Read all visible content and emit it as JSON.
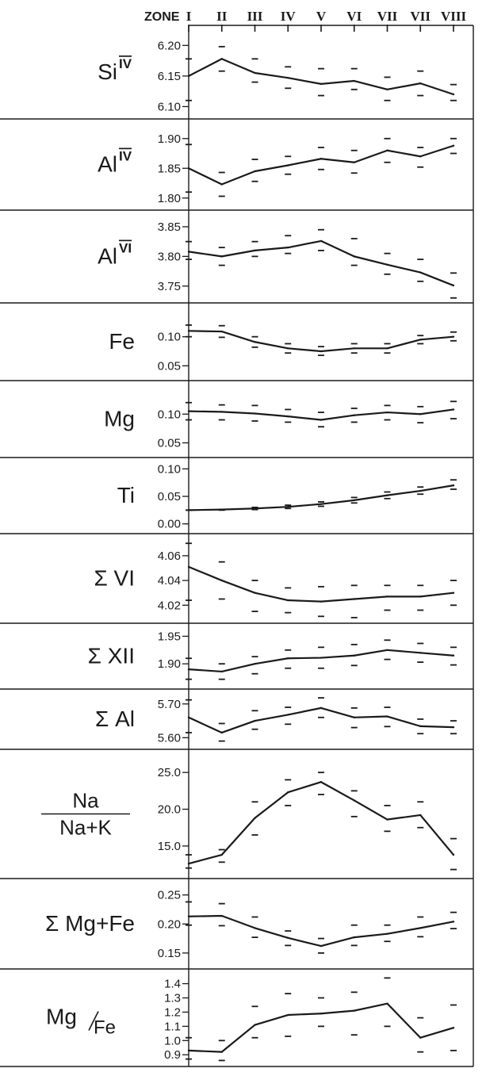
{
  "header": {
    "label": "ZONE"
  },
  "chart_data": {
    "type": "line",
    "categories": [
      "I",
      "II",
      "III",
      "IV",
      "V",
      "VI",
      "VII",
      "VII",
      "VIII"
    ],
    "panels": [
      {
        "id": "si",
        "label_main": "Si",
        "label_sup": "IV",
        "yticks": [
          "6.20",
          "6.15",
          "6.10"
        ],
        "ytick_values": [
          6.2,
          6.15,
          6.1
        ],
        "ylim": [
          6.085,
          6.225
        ],
        "values": [
          6.15,
          6.178,
          6.155,
          6.147,
          6.137,
          6.142,
          6.128,
          6.138,
          6.12
        ],
        "upper": [
          6.178,
          6.198,
          6.178,
          6.165,
          6.162,
          6.162,
          6.148,
          6.158,
          6.136
        ],
        "lower": [
          6.11,
          6.158,
          6.14,
          6.13,
          6.118,
          6.128,
          6.11,
          6.118,
          6.11
        ]
      },
      {
        "id": "al4",
        "label_main": "Al",
        "label_sup": "IV",
        "yticks": [
          "1.90",
          "1.85",
          "1.80"
        ],
        "ytick_values": [
          1.9,
          1.85,
          1.8
        ],
        "ylim": [
          1.785,
          1.925
        ],
        "values": [
          1.85,
          1.823,
          1.845,
          1.855,
          1.866,
          1.86,
          1.88,
          1.87,
          1.888
        ],
        "upper": [
          1.89,
          1.843,
          1.865,
          1.87,
          1.885,
          1.88,
          1.9,
          1.885,
          1.9
        ],
        "lower": [
          1.81,
          1.803,
          1.828,
          1.84,
          1.848,
          1.842,
          1.86,
          1.852,
          1.875
        ]
      },
      {
        "id": "al6",
        "label_main": "Al",
        "label_sup": "VI",
        "yticks": [
          "3.85",
          "3.80",
          "3.75"
        ],
        "ytick_values": [
          3.85,
          3.8,
          3.75
        ],
        "ylim": [
          3.727,
          3.87
        ],
        "values": [
          3.808,
          3.8,
          3.81,
          3.815,
          3.826,
          3.8,
          3.786,
          3.773,
          3.751
        ],
        "upper": [
          3.825,
          3.815,
          3.825,
          3.835,
          3.845,
          3.83,
          3.805,
          3.795,
          3.772
        ],
        "lower": [
          3.795,
          3.785,
          3.8,
          3.805,
          3.81,
          3.785,
          3.77,
          3.758,
          3.73
        ]
      },
      {
        "id": "fe",
        "label_main": "Fe",
        "label_sup": "",
        "yticks": [
          "0.10",
          "0.05"
        ],
        "ytick_values": [
          0.1,
          0.05
        ],
        "ylim": [
          0.03,
          0.15
        ],
        "values": [
          0.11,
          0.109,
          0.091,
          0.08,
          0.075,
          0.08,
          0.08,
          0.095,
          0.1
        ],
        "upper": [
          0.12,
          0.119,
          0.1,
          0.088,
          0.083,
          0.088,
          0.088,
          0.102,
          0.108
        ],
        "lower": [
          0.1,
          0.099,
          0.082,
          0.072,
          0.068,
          0.072,
          0.072,
          0.088,
          0.093
        ]
      },
      {
        "id": "mg",
        "label_main": "Mg",
        "label_sup": "",
        "yticks": [
          "0.10",
          "0.05"
        ],
        "ytick_values": [
          0.1,
          0.05
        ],
        "ylim": [
          0.03,
          0.15
        ],
        "values": [
          0.105,
          0.104,
          0.101,
          0.096,
          0.09,
          0.098,
          0.103,
          0.1,
          0.108
        ],
        "upper": [
          0.12,
          0.116,
          0.115,
          0.108,
          0.103,
          0.11,
          0.115,
          0.113,
          0.122
        ],
        "lower": [
          0.09,
          0.09,
          0.088,
          0.086,
          0.078,
          0.086,
          0.09,
          0.085,
          0.092
        ]
      },
      {
        "id": "ti",
        "label_main": "Ti",
        "label_sup": "",
        "yticks": [
          "0.10",
          "0.05",
          "0.00"
        ],
        "ytick_values": [
          0.1,
          0.05,
          0.0
        ],
        "ylim": [
          -0.012,
          0.112
        ],
        "values": [
          0.025,
          0.026,
          0.028,
          0.031,
          0.036,
          0.043,
          0.052,
          0.06,
          0.07
        ],
        "upper": [
          0.025,
          0.026,
          0.03,
          0.034,
          0.04,
          0.048,
          0.058,
          0.067,
          0.08
        ],
        "lower": [
          0.025,
          0.025,
          0.026,
          0.028,
          0.032,
          0.038,
          0.046,
          0.054,
          0.063
        ]
      },
      {
        "id": "sum6",
        "label_main": "Σ VI",
        "label_sup": "",
        "yticks": [
          "4.06",
          "4.04",
          "4.02"
        ],
        "ytick_values": [
          4.06,
          4.04,
          4.02
        ],
        "ylim": [
          4.008,
          4.074
        ],
        "values": [
          4.051,
          4.04,
          4.03,
          4.024,
          4.023,
          4.025,
          4.027,
          4.027,
          4.03
        ],
        "upper": [
          4.07,
          4.055,
          4.04,
          4.034,
          4.035,
          4.036,
          4.036,
          4.036,
          4.04
        ],
        "lower": [
          4.024,
          4.025,
          4.015,
          4.014,
          4.011,
          4.01,
          4.016,
          4.016,
          4.02
        ]
      },
      {
        "id": "sum12",
        "label_main": "Σ XII",
        "label_sup": "",
        "yticks": [
          "1.95",
          "1.90"
        ],
        "ytick_values": [
          1.95,
          1.9
        ],
        "ylim": [
          1.86,
          1.965
        ],
        "values": [
          1.89,
          1.886,
          1.9,
          1.91,
          1.911,
          1.915,
          1.925,
          1.92,
          1.915
        ],
        "upper": [
          1.91,
          1.9,
          1.913,
          1.925,
          1.93,
          1.935,
          1.943,
          1.937,
          1.93
        ],
        "lower": [
          1.872,
          1.872,
          1.882,
          1.892,
          1.892,
          1.897,
          1.908,
          1.903,
          1.898
        ]
      },
      {
        "id": "sumal",
        "label_main": "Σ Al",
        "label_sup": "",
        "yticks": [
          "5.70",
          "5.60"
        ],
        "ytick_values": [
          5.7,
          5.6
        ],
        "ylim": [
          5.575,
          5.73
        ],
        "values": [
          5.66,
          5.615,
          5.65,
          5.668,
          5.688,
          5.66,
          5.663,
          5.634,
          5.631
        ],
        "upper": [
          5.712,
          5.642,
          5.68,
          5.69,
          5.718,
          5.688,
          5.69,
          5.655,
          5.65
        ],
        "lower": [
          5.615,
          5.59,
          5.625,
          5.64,
          5.66,
          5.63,
          5.633,
          5.612,
          5.612
        ]
      },
      {
        "id": "na",
        "label_num": "Na",
        "label_den": "Na+K",
        "yticks": [
          "25.0",
          "20.0",
          "15.0"
        ],
        "ytick_values": [
          25.0,
          20.0,
          15.0
        ],
        "ylim": [
          11.0,
          27.5
        ],
        "values": [
          12.6,
          13.8,
          18.8,
          22.3,
          23.7,
          21.2,
          18.6,
          19.2,
          13.8
        ],
        "upper": [
          13.8,
          14.5,
          21.0,
          24.0,
          25.0,
          22.5,
          20.5,
          21.0,
          16.0
        ],
        "lower": [
          12.0,
          12.8,
          16.5,
          20.5,
          22.0,
          19.0,
          17.0,
          17.5,
          11.8
        ]
      },
      {
        "id": "mgfe",
        "label_main": "Σ Mg+Fe",
        "label_sup": "",
        "yticks": [
          "0.25",
          "0.20",
          "0.15"
        ],
        "ytick_values": [
          0.25,
          0.2,
          0.15
        ],
        "ylim": [
          0.128,
          0.27
        ],
        "values": [
          0.213,
          0.214,
          0.193,
          0.176,
          0.162,
          0.177,
          0.183,
          0.193,
          0.204
        ],
        "upper": [
          0.238,
          0.235,
          0.212,
          0.188,
          0.175,
          0.198,
          0.198,
          0.212,
          0.22
        ],
        "lower": [
          0.198,
          0.197,
          0.177,
          0.163,
          0.15,
          0.163,
          0.17,
          0.178,
          0.192
        ]
      },
      {
        "id": "ratio",
        "label_num2": "Mg",
        "label_den2": "Fe",
        "yticks": [
          "1.4",
          "1.3",
          "1.2",
          "1.1",
          "1.0",
          "0.9"
        ],
        "ytick_values": [
          1.4,
          1.3,
          1.2,
          1.1,
          1.0,
          0.9
        ],
        "ylim": [
          0.84,
          1.47
        ],
        "values": [
          0.93,
          0.92,
          1.11,
          1.18,
          1.19,
          1.21,
          1.26,
          1.02,
          1.09
        ],
        "upper": [
          1.02,
          1.0,
          1.24,
          1.33,
          1.3,
          1.34,
          1.44,
          1.16,
          1.25
        ],
        "lower": [
          0.87,
          0.86,
          1.02,
          1.03,
          1.1,
          1.04,
          1.1,
          0.92,
          0.93
        ]
      }
    ]
  }
}
